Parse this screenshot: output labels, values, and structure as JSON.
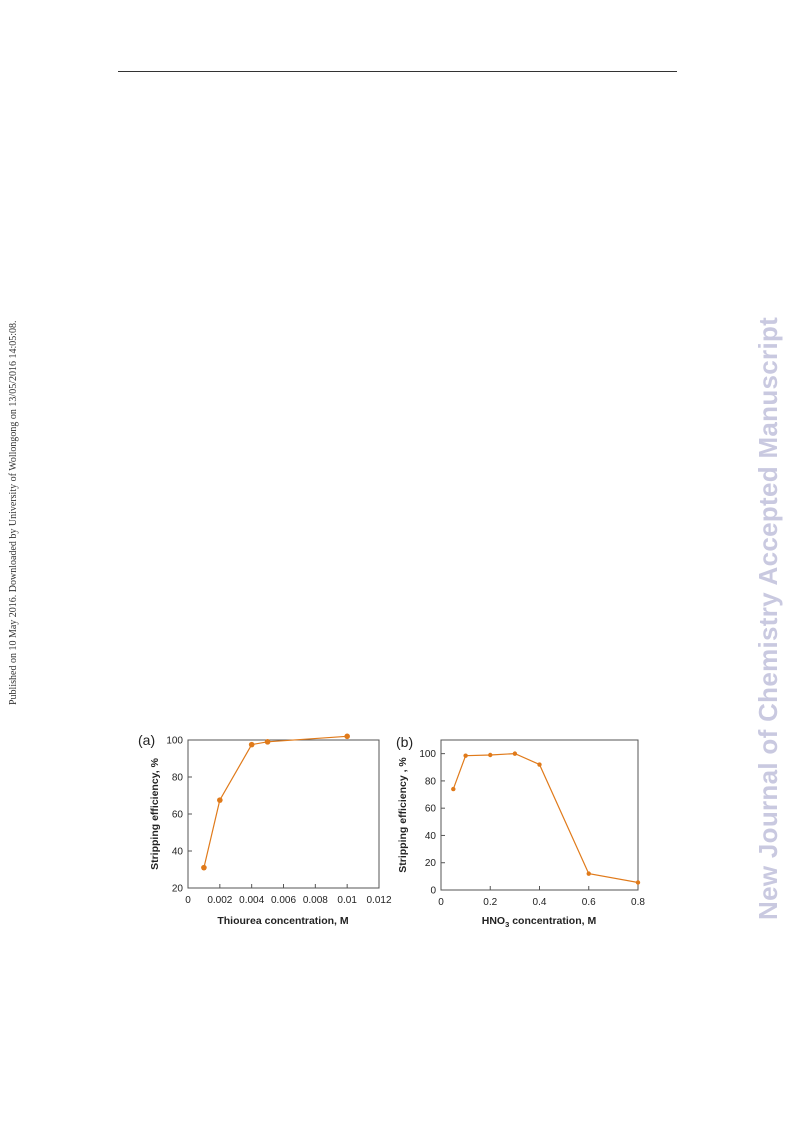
{
  "page": {
    "side_note": "Published on 10 May 2016. Downloaded by University of Wollongong on 13/05/2016 14:05:08.",
    "watermark": "New Journal of Chemistry Accepted Manuscript"
  },
  "colors": {
    "series": "#e07a1a",
    "axis": "#333333"
  },
  "chart_data": [
    {
      "type": "line",
      "panel_label": "(a)",
      "xlabel": "Thiourea concentration, M",
      "ylabel": "Stripping efficiency, %",
      "xlim": [
        0,
        0.012
      ],
      "ylim": [
        20,
        100
      ],
      "xticks": [
        0,
        0.002,
        0.004,
        0.006,
        0.008,
        0.01,
        0.012
      ],
      "xtick_labels": [
        "0",
        "0.002",
        "0.004",
        "0.006",
        "0.008",
        "0.01",
        "0.012"
      ],
      "yticks": [
        20,
        40,
        60,
        80,
        100
      ],
      "ytick_labels": [
        "20",
        "40",
        "60",
        "80",
        "100"
      ],
      "x": [
        0.001,
        0.002,
        0.004,
        0.005,
        0.01
      ],
      "y": [
        31,
        67.5,
        97.5,
        99,
        102
      ],
      "grid": false
    },
    {
      "type": "line",
      "panel_label": "(b)",
      "xlabel_main": "HNO",
      "xlabel_sub": "3",
      "xlabel_rest": " concentration, M",
      "ylabel": "Stripping efficiency , %",
      "xlim": [
        0,
        0.8
      ],
      "ylim": [
        0,
        110
      ],
      "xticks": [
        0,
        0.2,
        0.4,
        0.6,
        0.8
      ],
      "xtick_labels": [
        "0",
        "0.2",
        "0.4",
        "0.6",
        "0.8"
      ],
      "yticks": [
        0,
        20,
        40,
        60,
        80,
        100
      ],
      "ytick_labels": [
        "0",
        "20",
        "40",
        "60",
        "80",
        "100"
      ],
      "x": [
        0.05,
        0.1,
        0.2,
        0.3,
        0.4,
        0.6,
        0.8
      ],
      "y": [
        74,
        98.5,
        99,
        100,
        92,
        12,
        5.5
      ],
      "grid": false
    }
  ]
}
